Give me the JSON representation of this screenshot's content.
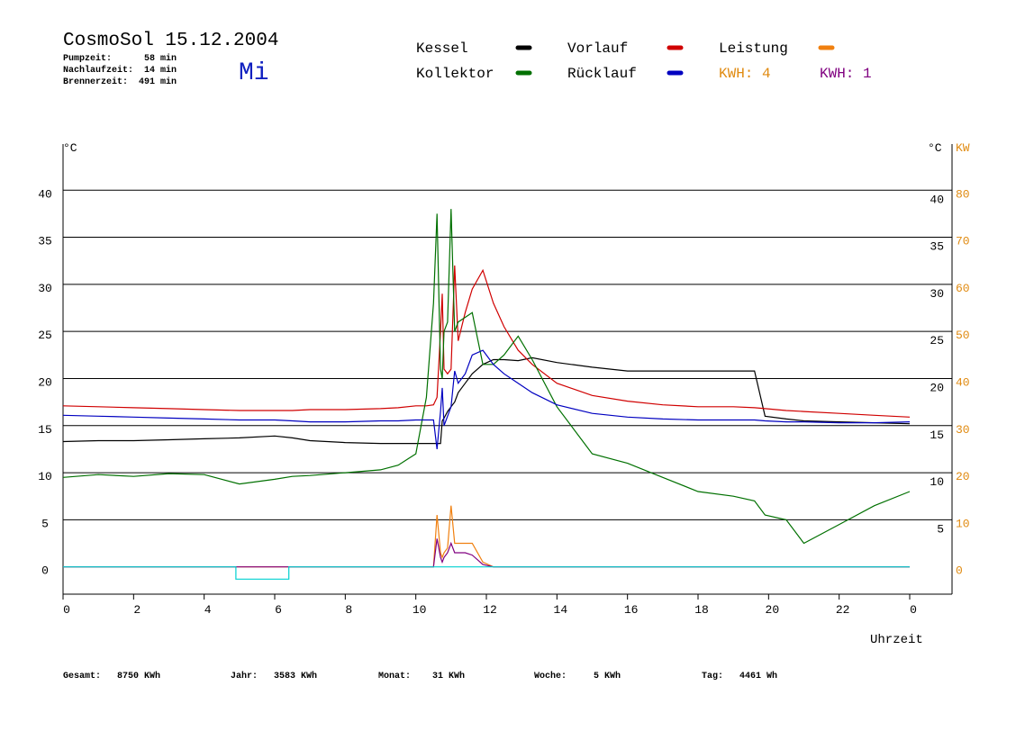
{
  "chart_data": {
    "type": "line",
    "title": "CosmoSol 15.12.2004",
    "stats": [
      "Pumpzeit:      58 min",
      "Nachlaufzeit:  14 min",
      "Brennerzeit:  491 min"
    ],
    "weekday": "Mi",
    "annotations": [
      {
        "text": "KWH: 4",
        "color": "#e08a10"
      },
      {
        "text": "KWH: 1",
        "color": "#800080"
      }
    ],
    "ylabel": "°C",
    "y2label_c": "°C",
    "y2label": "KW",
    "xlabel": "Uhrzeit",
    "totals": [
      "Gesamt:   8750 KWh",
      "Jahr:   3583 KWh",
      "Monat:    31 KWh",
      "Woche:     5 KWh",
      "Tag:   4461 Wh"
    ],
    "x": [
      0,
      1,
      2,
      3,
      4,
      5,
      6,
      6.5,
      7,
      8,
      9,
      9.5,
      10,
      10.3,
      10.5,
      10.6,
      10.7,
      10.75,
      10.8,
      10.9,
      11,
      11.1,
      11.2,
      11.4,
      11.6,
      11.9,
      12.2,
      12.5,
      12.9,
      13.3,
      14,
      15,
      16,
      17,
      18,
      19,
      19.6,
      19.9,
      20.5,
      21,
      22,
      23,
      24
    ],
    "xlim": [
      0,
      25.2
    ],
    "xticks": [
      0,
      2,
      4,
      6,
      8,
      10,
      12,
      14,
      16,
      18,
      20,
      22,
      {
        "value": 24,
        "label": "0"
      }
    ],
    "ylim": [
      -2.9,
      44.9
    ],
    "yticks": [
      0,
      5,
      10,
      15,
      20,
      25,
      30,
      35,
      40
    ],
    "y2lim": [
      -5.8,
      89.8
    ],
    "y2ticks": [
      0,
      10,
      20,
      30,
      40,
      50,
      60,
      70,
      80
    ],
    "grid": true,
    "series": [
      {
        "name": "Kessel",
        "color": "#000000",
        "values": [
          13.3,
          13.4,
          13.4,
          13.5,
          13.6,
          13.7,
          13.9,
          13.7,
          13.4,
          13.2,
          13.1,
          13.1,
          13.1,
          13.1,
          13.1,
          13.1,
          13.1,
          15.5,
          15.8,
          16.5,
          17,
          17.5,
          18.5,
          19.5,
          20.5,
          21.5,
          22,
          22,
          21.9,
          22.2,
          21.7,
          21.2,
          20.8,
          20.8,
          20.8,
          20.8,
          20.8,
          16,
          15.7,
          15.5,
          15.4,
          15.3,
          15.2
        ]
      },
      {
        "name": "Vorlauf",
        "color": "#d00000",
        "values": [
          17.1,
          17,
          16.9,
          16.8,
          16.7,
          16.6,
          16.6,
          16.6,
          16.7,
          16.7,
          16.8,
          16.9,
          17.1,
          17.1,
          17.2,
          18,
          25,
          29,
          21,
          20.5,
          21,
          32,
          24,
          27,
          29.5,
          31.5,
          28,
          25.5,
          23,
          21.5,
          19.5,
          18.2,
          17.6,
          17.2,
          17,
          17,
          16.9,
          16.8,
          16.6,
          16.5,
          16.3,
          16.1,
          15.9
        ]
      },
      {
        "name": "Leistung",
        "color": "#f08010",
        "axis": "y2",
        "values": [
          0,
          0,
          0,
          0,
          0,
          0,
          0,
          0,
          0,
          0,
          0,
          0,
          0,
          0,
          0,
          11,
          3,
          2,
          3,
          4,
          13,
          5,
          5,
          5,
          5,
          1,
          0,
          0,
          0,
          0,
          0,
          0,
          0,
          0,
          0,
          0,
          0,
          0,
          0,
          0,
          0,
          0,
          0
        ]
      },
      {
        "name": "Kollektor",
        "color": "#007000",
        "values": [
          9.5,
          9.8,
          9.6,
          9.9,
          9.8,
          8.8,
          9.3,
          9.6,
          9.7,
          10,
          10.3,
          10.8,
          12,
          18,
          28,
          37.5,
          21,
          20,
          25,
          26,
          38,
          25,
          26,
          26.5,
          27,
          21.5,
          21.5,
          22.5,
          24.5,
          22,
          17,
          12,
          11,
          9.5,
          8,
          7.5,
          7,
          5.5,
          5,
          2.5,
          4.5,
          6.5,
          8
        ]
      },
      {
        "name": "Rücklauf",
        "color": "#0000c0",
        "values": [
          16.1,
          16,
          15.9,
          15.8,
          15.7,
          15.6,
          15.6,
          15.5,
          15.4,
          15.4,
          15.5,
          15.5,
          15.6,
          15.6,
          15.6,
          12.5,
          16.5,
          19,
          15,
          16,
          17,
          20.8,
          19.5,
          20.5,
          22.5,
          23,
          21.5,
          20.5,
          19.5,
          18.5,
          17.2,
          16.3,
          15.9,
          15.7,
          15.6,
          15.6,
          15.6,
          15.5,
          15.4,
          15.4,
          15.3,
          15.3,
          15.4
        ]
      },
      {
        "color": "#800080",
        "axis": "y2",
        "values": [
          0,
          0,
          0,
          0,
          0,
          0,
          0,
          0,
          0,
          0,
          0,
          0,
          0,
          0,
          0,
          6,
          2,
          1,
          2,
          3,
          5,
          3,
          3,
          3,
          2.5,
          0.5,
          0,
          0,
          0,
          0,
          0,
          0,
          0,
          0,
          0,
          0,
          0,
          0,
          0,
          0,
          0,
          0,
          0
        ]
      },
      {
        "color": "#00d0d0",
        "x": [
          0,
          4.9,
          4.9,
          6.4,
          6.4,
          24
        ],
        "values": [
          0,
          0,
          -1.3,
          -1.3,
          0,
          0
        ]
      }
    ]
  }
}
